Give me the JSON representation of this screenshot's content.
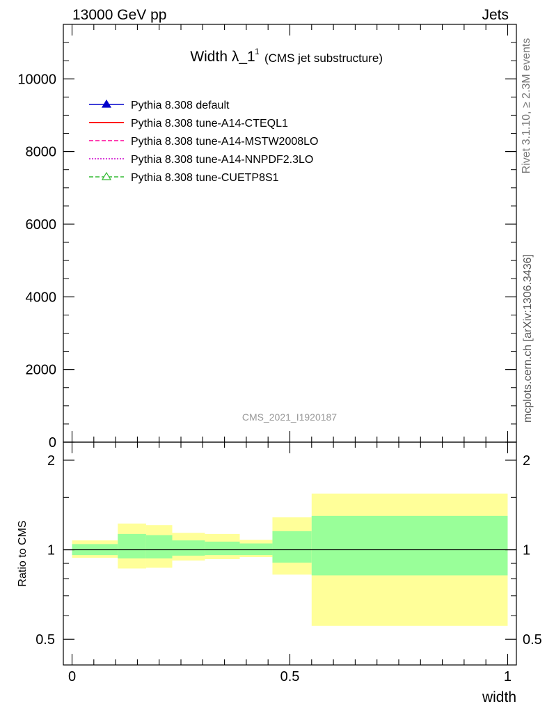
{
  "header": {
    "left": "13000 GeV pp",
    "right": "Jets"
  },
  "side": {
    "top": "Rivet 3.1.10, ≥ 2.3M events",
    "bottom": "mcplots.cern.ch [arXiv:1306.3436]"
  },
  "chart_data": [
    {
      "type": "line",
      "title_main": "Width λ_1",
      "title_sup": "1",
      "title_sub": "(CMS jet substructure)",
      "watermark": "CMS_2021_I1920187",
      "xlabel": "",
      "ylabel": "",
      "xlim": [
        -0.02,
        1.02
      ],
      "ylim": [
        0,
        11500
      ],
      "yticks": [
        {
          "value": 0,
          "label": "0"
        },
        {
          "value": 2000,
          "label": "2000"
        },
        {
          "value": 4000,
          "label": "4000"
        },
        {
          "value": 6000,
          "label": "6000"
        },
        {
          "value": 8000,
          "label": "8000"
        },
        {
          "value": 10000,
          "label": "10000"
        }
      ],
      "legend_position": "top-left",
      "series": [
        {
          "name": "Pythia 8.308 default",
          "color": "#0000cc",
          "style": "solid-triangle",
          "values": []
        },
        {
          "name": "Pythia 8.308 tune-A14-CTEQL1",
          "color": "#ff0000",
          "style": "solid",
          "values": []
        },
        {
          "name": "Pythia 8.308 tune-A14-MSTW2008LO",
          "color": "#ff0099",
          "style": "dashed",
          "values": []
        },
        {
          "name": "Pythia 8.308 tune-A14-NNPDF2.3LO",
          "color": "#cc00cc",
          "style": "dotted",
          "values": []
        },
        {
          "name": "Pythia 8.308 tune-CUETP8S1",
          "color": "#33bb33",
          "style": "dashed-open-triangle",
          "values": []
        }
      ]
    },
    {
      "type": "area",
      "ylabel": "Ratio to CMS",
      "xlabel": "width",
      "xlim": [
        -0.02,
        1.02
      ],
      "ylim": [
        0.41,
        2.3
      ],
      "log_y": true,
      "yticks": [
        {
          "value": 0.5,
          "label": "0.5"
        },
        {
          "value": 1,
          "label": "1"
        },
        {
          "value": 2,
          "label": "2"
        }
      ],
      "xticks": [
        {
          "value": 0,
          "label": "0"
        },
        {
          "value": 0.5,
          "label": "0.5"
        },
        {
          "value": 1,
          "label": "1"
        }
      ],
      "band_colors": {
        "outer": "#ffff99",
        "inner": "#99ff99"
      },
      "bins": [
        {
          "x": [
            0.0,
            0.105
          ],
          "outer": [
            0.94,
            1.075
          ],
          "inner": [
            0.96,
            1.045
          ]
        },
        {
          "x": [
            0.105,
            0.17
          ],
          "outer": [
            0.865,
            1.225
          ],
          "inner": [
            0.935,
            1.13
          ]
        },
        {
          "x": [
            0.17,
            0.23
          ],
          "outer": [
            0.87,
            1.21
          ],
          "inner": [
            0.935,
            1.12
          ]
        },
        {
          "x": [
            0.23,
            0.305
          ],
          "outer": [
            0.92,
            1.14
          ],
          "inner": [
            0.955,
            1.075
          ]
        },
        {
          "x": [
            0.305,
            0.385
          ],
          "outer": [
            0.93,
            1.13
          ],
          "inner": [
            0.96,
            1.065
          ]
        },
        {
          "x": [
            0.385,
            0.46
          ],
          "outer": [
            0.945,
            1.08
          ],
          "inner": [
            0.96,
            1.05
          ]
        },
        {
          "x": [
            0.46,
            0.55
          ],
          "outer": [
            0.825,
            1.285
          ],
          "inner": [
            0.905,
            1.155
          ]
        },
        {
          "x": [
            0.55,
            1.0
          ],
          "outer": [
            0.555,
            1.545
          ],
          "inner": [
            0.82,
            1.3
          ]
        }
      ]
    }
  ]
}
